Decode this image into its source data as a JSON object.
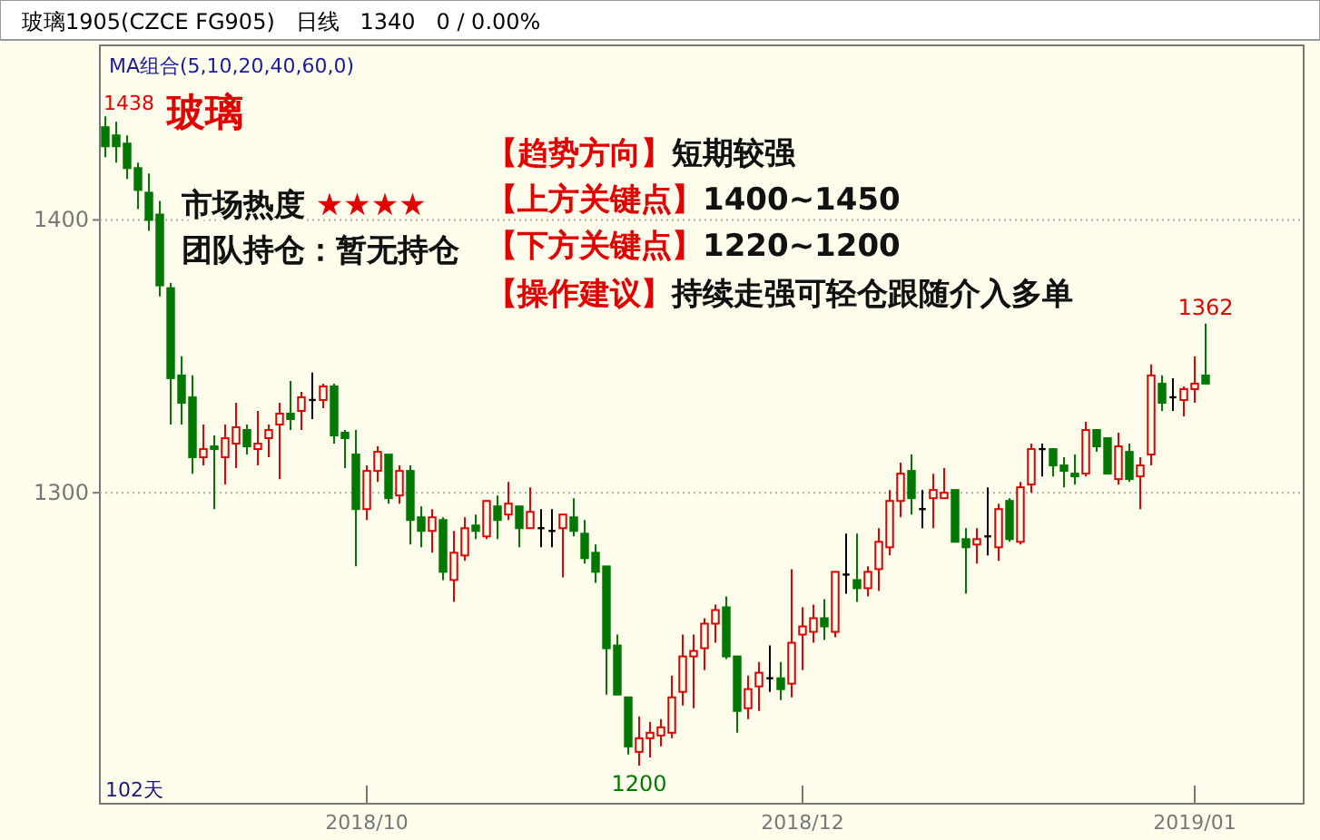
{
  "chart_data": {
    "type": "candlestick",
    "title": "玻璃",
    "subtitle": "玻璃1905(CZCE FG905)   日线   1340   0 / 0.00%",
    "categories": [
      null,
      null,
      null,
      null,
      null,
      null,
      null,
      null,
      null,
      null,
      null,
      null,
      null,
      null,
      null,
      null,
      null,
      null,
      null,
      null,
      null,
      null,
      null,
      null,
      "2018/10",
      null,
      null,
      null,
      null,
      null,
      null,
      null,
      null,
      null,
      null,
      null,
      null,
      null,
      null,
      null,
      null,
      null,
      null,
      null,
      null,
      null,
      null,
      null,
      null,
      null,
      null,
      null,
      null,
      null,
      null,
      null,
      null,
      null,
      null,
      null,
      null,
      null,
      null,
      null,
      "2018/12",
      null,
      null,
      null,
      null,
      null,
      null,
      null,
      null,
      null,
      null,
      null,
      null,
      null,
      null,
      null,
      null,
      null,
      null,
      null,
      null,
      null,
      null,
      null,
      null,
      null,
      null,
      null,
      null,
      null,
      null,
      null,
      null,
      null,
      null,
      null,
      "2019/01",
      null
    ],
    "ohlc": [
      [
        1434,
        1438,
        1423,
        1427
      ],
      [
        1431,
        1436,
        1421,
        1427
      ],
      [
        1428,
        1431,
        1415,
        1419
      ],
      [
        1419,
        1421,
        1404,
        1411
      ],
      [
        1410,
        1417,
        1396,
        1400
      ],
      [
        1402,
        1407,
        1372,
        1376
      ],
      [
        1375,
        1377,
        1325,
        1342
      ],
      [
        1343,
        1350,
        1325,
        1333
      ],
      [
        1335,
        1343,
        1307,
        1313
      ],
      [
        1313,
        1325,
        1310,
        1316
      ],
      [
        1317,
        1321,
        1294,
        1316
      ],
      [
        1313,
        1325,
        1303,
        1320
      ],
      [
        1318,
        1333,
        1309,
        1324
      ],
      [
        1323,
        1325,
        1314,
        1317
      ],
      [
        1316,
        1330,
        1310,
        1318
      ],
      [
        1320,
        1325,
        1313,
        1323
      ],
      [
        1325,
        1333,
        1305,
        1329
      ],
      [
        1329,
        1341,
        1323,
        1327
      ],
      [
        1330,
        1337,
        1323,
        1335
      ],
      [
        1334,
        1344,
        1327,
        1334
      ],
      [
        1334,
        1340,
        1331,
        1339
      ],
      [
        1339,
        1340,
        1318,
        1321
      ],
      [
        1322,
        1323,
        1309,
        1320
      ],
      [
        1314,
        1323,
        1273,
        1294
      ],
      [
        1294,
        1310,
        1290,
        1308
      ],
      [
        1308,
        1317,
        1304,
        1315
      ],
      [
        1314,
        1314,
        1296,
        1298
      ],
      [
        1299,
        1310,
        1296,
        1308
      ],
      [
        1308,
        1310,
        1281,
        1290
      ],
      [
        1291,
        1295,
        1280,
        1286
      ],
      [
        1286,
        1294,
        1278,
        1291
      ],
      [
        1290,
        1291,
        1268,
        1271
      ],
      [
        1268,
        1286,
        1260,
        1278
      ],
      [
        1277,
        1291,
        1275,
        1287
      ],
      [
        1288,
        1292,
        1283,
        1286
      ],
      [
        1284,
        1297,
        1283,
        1297
      ],
      [
        1295,
        1299,
        1283,
        1290
      ],
      [
        1292,
        1304,
        1290,
        1296
      ],
      [
        1295,
        1295,
        1280,
        1287
      ],
      [
        1287,
        1302,
        1287,
        1293
      ],
      [
        1287,
        1294,
        1280,
        1287
      ],
      [
        1286,
        1294,
        1280,
        1286
      ],
      [
        1287,
        1292,
        1269,
        1292
      ],
      [
        1291,
        1298,
        1284,
        1286
      ],
      [
        1285,
        1290,
        1274,
        1276
      ],
      [
        1278,
        1281,
        1267,
        1271
      ],
      [
        1273,
        1273,
        1226,
        1243
      ],
      [
        1244,
        1248,
        1226,
        1226
      ],
      [
        1225,
        1225,
        1204,
        1207
      ],
      [
        1205,
        1218,
        1200,
        1210
      ],
      [
        1210,
        1216,
        1203,
        1212
      ],
      [
        1211,
        1217,
        1207,
        1214
      ],
      [
        1212,
        1233,
        1210,
        1225
      ],
      [
        1227,
        1248,
        1222,
        1240
      ],
      [
        1240,
        1248,
        1221,
        1242
      ],
      [
        1243,
        1254,
        1235,
        1252
      ],
      [
        1252,
        1259,
        1245,
        1257
      ],
      [
        1258,
        1262,
        1239,
        1240
      ],
      [
        1240,
        1240,
        1212,
        1220
      ],
      [
        1221,
        1233,
        1217,
        1228
      ],
      [
        1229,
        1238,
        1220,
        1234
      ],
      [
        1232,
        1244,
        1227,
        1232
      ],
      [
        1232,
        1238,
        1224,
        1228
      ],
      [
        1230,
        1272,
        1225,
        1245
      ],
      [
        1248,
        1258,
        1235,
        1251
      ],
      [
        1249,
        1259,
        1245,
        1254
      ],
      [
        1254,
        1261,
        1246,
        1251
      ],
      [
        1249,
        1271,
        1247,
        1271
      ],
      [
        1270,
        1285,
        1263,
        1270
      ],
      [
        1268,
        1285,
        1260,
        1265
      ],
      [
        1265,
        1273,
        1262,
        1271
      ],
      [
        1272,
        1287,
        1264,
        1282
      ],
      [
        1280,
        1301,
        1277,
        1297
      ],
      [
        1297,
        1311,
        1291,
        1307
      ],
      [
        1308,
        1314,
        1292,
        1298
      ],
      [
        1294,
        1301,
        1287,
        1294
      ],
      [
        1298,
        1307,
        1287,
        1301
      ],
      [
        1298,
        1309,
        1298,
        1300
      ],
      [
        1301,
        1301,
        1282,
        1282
      ],
      [
        1283,
        1287,
        1263,
        1280
      ],
      [
        1281,
        1287,
        1274,
        1283
      ],
      [
        1284,
        1302,
        1277,
        1284
      ],
      [
        1280,
        1296,
        1275,
        1294
      ],
      [
        1297,
        1298,
        1282,
        1283
      ],
      [
        1282,
        1304,
        1281,
        1302
      ],
      [
        1303,
        1318,
        1300,
        1316
      ],
      [
        1316,
        1318,
        1306,
        1316
      ],
      [
        1316,
        1316,
        1306,
        1310
      ],
      [
        1310,
        1313,
        1302,
        1308
      ],
      [
        1307,
        1314,
        1303,
        1306
      ],
      [
        1307,
        1326,
        1306,
        1323
      ],
      [
        1323,
        1323,
        1315,
        1317
      ],
      [
        1320,
        1320,
        1307,
        1307
      ],
      [
        1305,
        1322,
        1303,
        1317
      ],
      [
        1315,
        1318,
        1304,
        1305
      ],
      [
        1306,
        1313,
        1294,
        1310
      ],
      [
        1314,
        1347,
        1310,
        1343
      ],
      [
        1340,
        1343,
        1330,
        1333
      ],
      [
        1335,
        1342,
        1330,
        1335
      ],
      [
        1334,
        1339,
        1328,
        1338
      ],
      [
        1338,
        1350,
        1333,
        1340
      ],
      [
        1343,
        1362,
        1340,
        1340
      ]
    ],
    "colors": [
      "#007800",
      "#007800",
      "#007800",
      "#007800",
      "#007800",
      "#007800",
      "#007800",
      "#007800",
      "#007800",
      "#e00000",
      "#007800",
      "#e00000",
      "#e00000",
      "#007800",
      "#e00000",
      "#e00000",
      "#e00000",
      "#007800",
      "#e00000",
      "#000000",
      "#e00000",
      "#007800",
      "#007800",
      "#007800",
      "#e00000",
      "#e00000",
      "#007800",
      "#e00000",
      "#007800",
      "#007800",
      "#e00000",
      "#007800",
      "#e00000",
      "#e00000",
      "#007800",
      "#e00000",
      "#007800",
      "#e00000",
      "#007800",
      "#e00000",
      "#000000",
      "#000000",
      "#e00000",
      "#007800",
      "#007800",
      "#007800",
      "#007800",
      "#007800",
      "#007800",
      "#e00000",
      "#e00000",
      "#e00000",
      "#e00000",
      "#e00000",
      "#e00000",
      "#e00000",
      "#e00000",
      "#007800",
      "#007800",
      "#e00000",
      "#e00000",
      "#000000",
      "#007800",
      "#e00000",
      "#e00000",
      "#e00000",
      "#007800",
      "#e00000",
      "#000000",
      "#007800",
      "#e00000",
      "#e00000",
      "#e00000",
      "#e00000",
      "#007800",
      "#000000",
      "#e00000",
      "#e00000",
      "#007800",
      "#007800",
      "#e00000",
      "#000000",
      "#e00000",
      "#007800",
      "#e00000",
      "#e00000",
      "#000000",
      "#007800",
      "#007800",
      "#007800",
      "#e00000",
      "#007800",
      "#007800",
      "#e00000",
      "#007800",
      "#e00000",
      "#e00000",
      "#007800",
      "#000000",
      "#e00000",
      "#e00000",
      "#007800"
    ],
    "ylim": [
      1186,
      1464
    ],
    "yticks": [
      1300,
      1400
    ],
    "grid": "y",
    "annotations": [
      "MA组合(5,10,20,40,60,0)",
      "市场热度 ★★★★",
      "团队持仓：暂无持仓",
      "【趋势方向】短期较强",
      "【上方关键点】1400~1450",
      "【下方关键点】1220~1200",
      "【操作建议】持续走强可轻仓跟随介入多单",
      "102天",
      "1438",
      {
        "text": "1362",
        "y": 1362
      },
      {
        "text": "1200",
        "y": 1200
      }
    ]
  }
}
